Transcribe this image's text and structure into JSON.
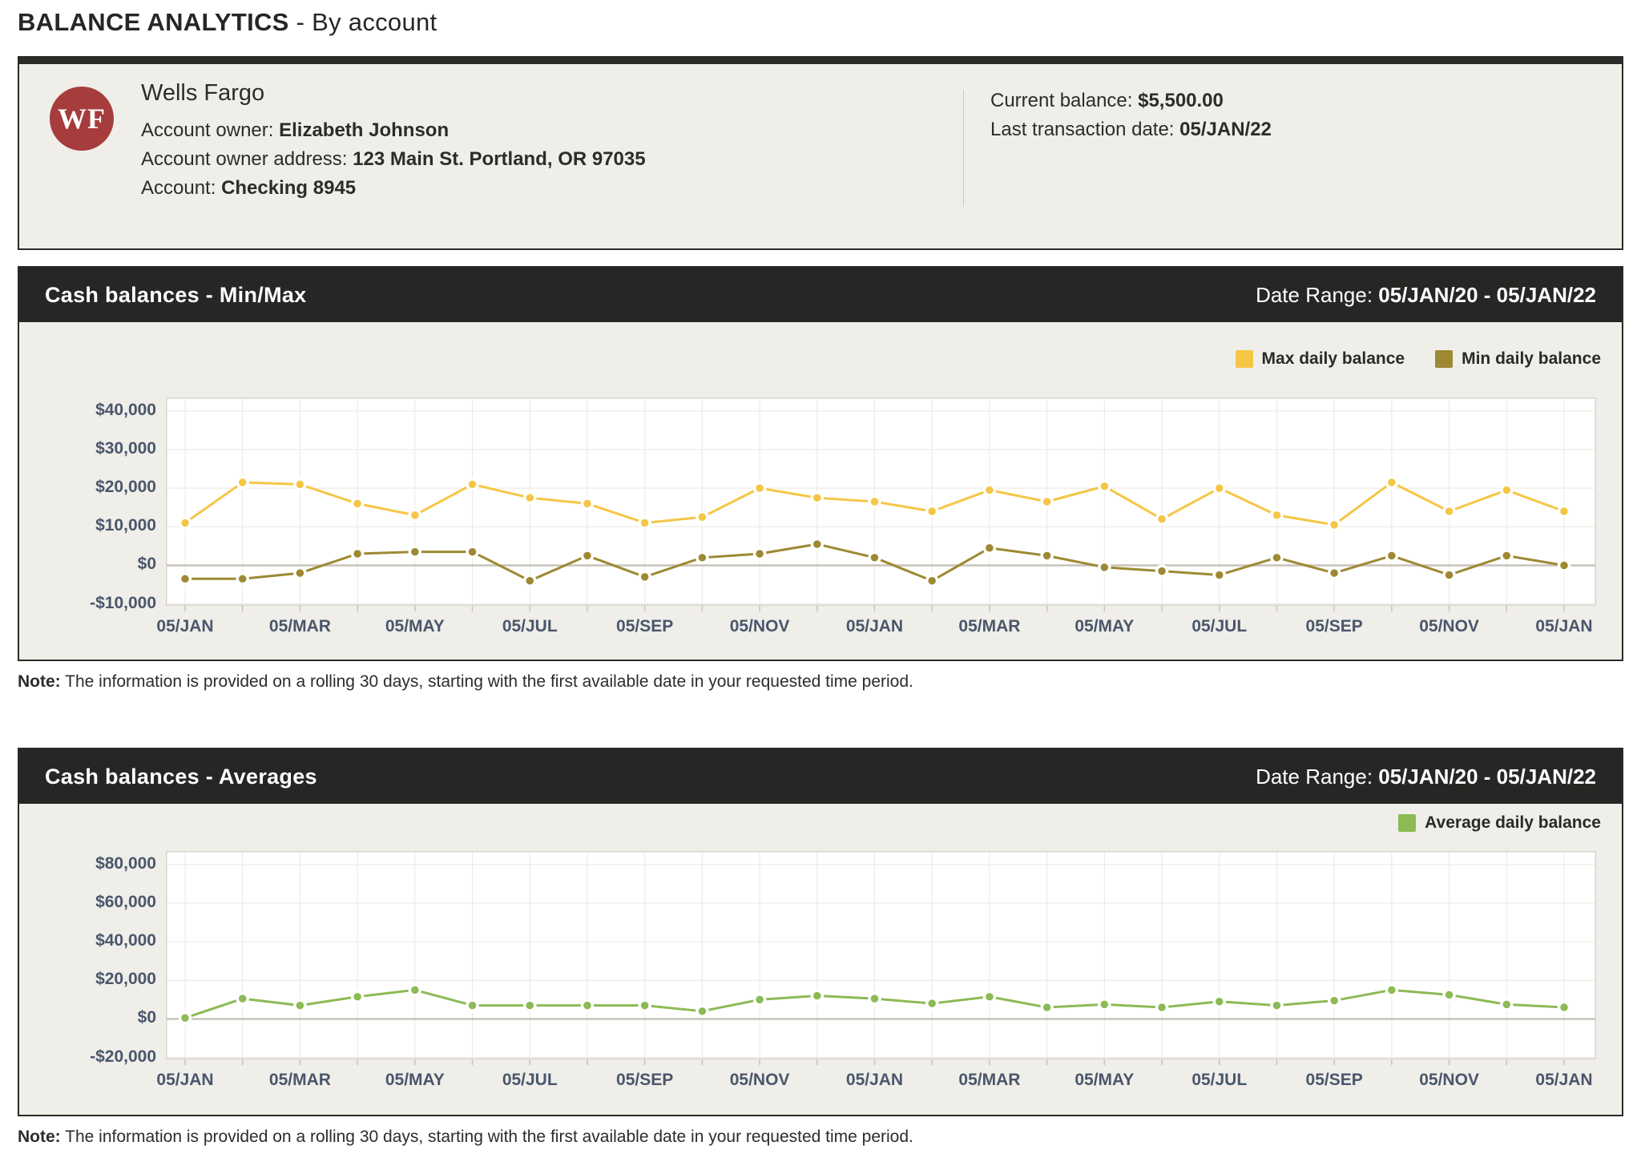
{
  "page_title": {
    "main": "BALANCE ANALYTICS",
    "suffix": " - By account"
  },
  "account_card": {
    "logo_text": "WF",
    "bank_name": "Wells Fargo",
    "owner_label": "Account owner: ",
    "owner_value": "Elizabeth Johnson",
    "address_label": "Account owner address: ",
    "address_value": "123 Main St. Portland, OR 97035",
    "account_label": "Account: ",
    "account_value": "Checking 8945",
    "balance_label": "Current balance: ",
    "balance_value": "$5,500.00",
    "last_tx_label": "Last transaction date: ",
    "last_tx_value": "05/JAN/22"
  },
  "note": {
    "label": "Note:",
    "text": " The information is provided on a rolling 30 days, starting with the first available date in your requested time period."
  },
  "colors": {
    "header_bar": "#262624",
    "panel_bg": "#efeee9",
    "logo_red": "#a63c3c",
    "axis_text": "#4a566b",
    "max_yellow": "#f5c646",
    "min_olive": "#9d8932",
    "avg_green": "#8cba55"
  },
  "chart_data": [
    {
      "type": "line",
      "title": "Cash balances - Min/Max",
      "date_range_label": "Date Range: ",
      "date_range_value": "05/JAN/20 - 05/JAN/22",
      "n_points": 25,
      "x_label_every": 2,
      "x_tick_labels": [
        "05/JAN",
        "05/MAR",
        "05/MAY",
        "05/JUL",
        "05/SEP",
        "05/NOV",
        "05/JAN",
        "05/MAR",
        "05/MAY",
        "05/JUL",
        "05/SEP",
        "05/NOV",
        "05/JAN"
      ],
      "y_ticks": [
        40000,
        30000,
        20000,
        10000,
        0,
        -10000
      ],
      "y_tick_labels": [
        "$40,000",
        "$30,000",
        "$20,000",
        "$10,000",
        "$0",
        "-$10,000"
      ],
      "ylim": [
        -10500,
        43500
      ],
      "grid": true,
      "legend_position": "top-right",
      "series": [
        {
          "name": "Max daily balance",
          "color": "#f5c646",
          "values": [
            11000,
            21500,
            21000,
            16000,
            13000,
            21000,
            17500,
            16000,
            11000,
            12500,
            20000,
            17500,
            16500,
            14000,
            19500,
            16500,
            20500,
            12000,
            20000,
            13000,
            10500,
            21500,
            14000,
            19500,
            14000
          ]
        },
        {
          "name": "Min daily balance",
          "color": "#9d8932",
          "values": [
            -3500,
            -3500,
            -2000,
            3000,
            3500,
            3500,
            -4000,
            2500,
            -3000,
            2000,
            3000,
            5500,
            2000,
            -4000,
            4500,
            2500,
            -500,
            -1500,
            -2500,
            2000,
            -2000,
            2500,
            -2500,
            2500,
            0
          ]
        }
      ]
    },
    {
      "type": "line",
      "title": "Cash balances - Averages",
      "date_range_label": "Date Range: ",
      "date_range_value": "05/JAN/20 - 05/JAN/22",
      "n_points": 25,
      "x_label_every": 2,
      "x_tick_labels": [
        "05/JAN",
        "05/MAR",
        "05/MAY",
        "05/JUL",
        "05/SEP",
        "05/NOV",
        "05/JAN",
        "05/MAR",
        "05/MAY",
        "05/JUL",
        "05/SEP",
        "05/NOV",
        "05/JAN"
      ],
      "y_ticks": [
        80000,
        60000,
        40000,
        20000,
        0,
        -20000
      ],
      "y_tick_labels": [
        "$80,000",
        "$60,000",
        "$40,000",
        "$20,000",
        "$0",
        "-$20,000"
      ],
      "ylim": [
        -21000,
        87000
      ],
      "grid": true,
      "legend_position": "top-right",
      "series": [
        {
          "name": "Average daily balance",
          "color": "#8cba55",
          "values": [
            500,
            10500,
            7000,
            11500,
            15000,
            7000,
            7000,
            7000,
            7000,
            4000,
            10000,
            12000,
            10500,
            8000,
            11500,
            6000,
            7500,
            6000,
            9000,
            7000,
            9500,
            15000,
            12500,
            7500,
            6000
          ]
        }
      ]
    }
  ]
}
